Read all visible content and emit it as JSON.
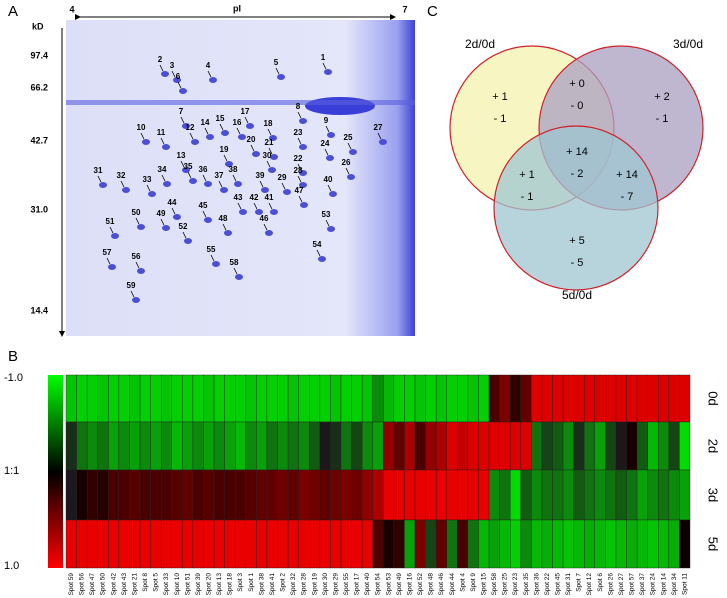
{
  "panel_labels": [
    "A",
    "B",
    "C"
  ],
  "gel": {
    "y_unit": "kD",
    "mw_labels": [
      "97.4",
      "66.2",
      "42.7",
      "31.0",
      "14.4"
    ],
    "x_label": "pI",
    "x_start": "4",
    "x_end": "7",
    "spots": [
      "1",
      "2",
      "3",
      "4",
      "5",
      "6",
      "7",
      "8",
      "9",
      "10",
      "11",
      "12",
      "13",
      "14",
      "15",
      "16",
      "17",
      "18",
      "19",
      "20",
      "21",
      "22",
      "23",
      "24",
      "25",
      "26",
      "27",
      "28",
      "29",
      "30",
      "31",
      "32",
      "33",
      "34",
      "35",
      "36",
      "37",
      "38",
      "39",
      "40",
      "41",
      "42",
      "43",
      "44",
      "45",
      "46",
      "47",
      "48",
      "49",
      "50",
      "51",
      "52",
      "53",
      "54",
      "55",
      "56",
      "57",
      "58",
      "59"
    ]
  },
  "heatmap": {
    "scale_labels": [
      "-1.0",
      "1:1",
      "1.0"
    ],
    "spots": [
      "Spot 59",
      "Spot 56",
      "Spot 47",
      "Spot 50",
      "Spot 42",
      "Spot 43",
      "Spot 21",
      "Spot 8",
      "Spot 5",
      "Spot 33",
      "Spot 10",
      "Spot 51",
      "Spot 39",
      "Spot 20",
      "Spot 13",
      "Spot 18",
      "Spot 3",
      "Spot 1",
      "Spot 38",
      "Spot 41",
      "Spot 2",
      "Spot 32",
      "Spot 28",
      "Spot 19",
      "Spot 30",
      "Spot 29",
      "Spot 55",
      "Spot 17",
      "Spot 40",
      "Spot 54",
      "Spot 53",
      "Spot 49",
      "Spot 16",
      "Spot 52",
      "Spot 48",
      "Spot 46",
      "Spot 44",
      "Spot 4",
      "Spot 9",
      "Spot 15",
      "Spot 58",
      "Spot 25",
      "Spot 23",
      "Spot 35",
      "Spot 36",
      "Spot 22",
      "Spot 45",
      "Spot 31",
      "Spot 7",
      "Spot 12",
      "Spot 6",
      "Spot 26",
      "Spot 27",
      "Spot 57",
      "Spot 37",
      "Spot 24",
      "Spot 14",
      "Spot 34",
      "Spot 11"
    ],
    "rows": [
      {
        "name": "0d",
        "values": [
          -0.85,
          -0.9,
          -0.9,
          -0.85,
          -0.9,
          -0.9,
          -0.85,
          -0.9,
          -0.9,
          -0.85,
          -0.9,
          -0.9,
          -0.9,
          -0.85,
          -0.9,
          -0.9,
          -0.9,
          -0.85,
          -0.9,
          -0.9,
          -0.9,
          -0.85,
          -0.9,
          -0.9,
          -0.9,
          -0.85,
          -0.9,
          -0.9,
          -0.85,
          -0.6,
          -0.8,
          -0.9,
          -0.9,
          -0.85,
          -0.9,
          -0.85,
          -0.9,
          -0.9,
          -0.85,
          -0.9,
          0.3,
          0.5,
          0.2,
          0.4,
          0.9,
          0.9,
          0.9,
          0.9,
          0.9,
          0.9,
          0.9,
          0.9,
          0.9,
          0.9,
          0.9,
          0.9,
          0.9,
          0.9,
          0.9
        ]
      },
      {
        "name": "2d",
        "values": [
          -0.2,
          -0.5,
          -0.6,
          -0.5,
          -0.7,
          -0.6,
          -0.7,
          -0.6,
          -0.7,
          -0.6,
          -0.8,
          -0.7,
          -0.6,
          -0.7,
          -0.6,
          -0.7,
          -0.8,
          -0.6,
          -0.7,
          -0.5,
          -0.6,
          -0.5,
          -0.6,
          -0.4,
          -0.1,
          -0.2,
          -0.5,
          -0.3,
          -0.6,
          -0.7,
          0.6,
          0.4,
          0.7,
          0.3,
          0.6,
          0.7,
          0.9,
          0.8,
          0.9,
          0.9,
          0.9,
          0.9,
          0.9,
          0.9,
          -0.5,
          -0.3,
          -0.4,
          -0.6,
          -0.2,
          -0.5,
          -0.7,
          -0.3,
          -0.1,
          0.1,
          -0.4,
          -0.8,
          -0.6,
          -0.3,
          -0.95
        ]
      },
      {
        "name": "3d",
        "values": [
          -0.1,
          0.1,
          0.2,
          0.15,
          0.3,
          0.3,
          0.35,
          0.3,
          0.3,
          0.3,
          0.35,
          0.4,
          0.3,
          0.35,
          0.3,
          0.3,
          0.3,
          0.35,
          0.4,
          0.4,
          0.45,
          0.4,
          0.5,
          0.45,
          0.4,
          0.45,
          0.5,
          0.45,
          0.6,
          0.7,
          0.95,
          0.95,
          0.95,
          0.95,
          0.95,
          0.95,
          0.95,
          0.95,
          0.95,
          0.95,
          -0.6,
          -0.5,
          -0.95,
          -0.4,
          -0.6,
          -0.5,
          -0.5,
          -0.6,
          -0.4,
          -0.5,
          -0.6,
          -0.5,
          -0.4,
          -0.5,
          -0.7,
          -0.6,
          -0.5,
          -0.6,
          -0.7
        ]
      },
      {
        "name": "5d",
        "values": [
          0.95,
          0.95,
          0.95,
          0.95,
          0.95,
          0.95,
          0.95,
          0.95,
          0.95,
          0.95,
          0.95,
          0.95,
          0.95,
          0.95,
          0.95,
          0.95,
          0.95,
          0.95,
          0.95,
          0.95,
          0.95,
          0.95,
          0.95,
          0.95,
          0.95,
          0.95,
          0.95,
          0.95,
          0.95,
          0.3,
          0.1,
          0.2,
          -0.7,
          0.5,
          -0.3,
          0.4,
          -0.5,
          0.3,
          -0.5,
          -0.8,
          -0.7,
          -0.8,
          -0.9,
          -0.6,
          -0.8,
          -0.75,
          -0.8,
          -0.85,
          -0.8,
          -0.75,
          -0.8,
          -0.85,
          -0.8,
          -0.75,
          -0.8,
          -0.85,
          -0.8,
          -0.75,
          0.05
        ]
      }
    ]
  },
  "venn": {
    "sets": [
      "2d/0d",
      "3d/0d",
      "5d/0d"
    ],
    "regions": [
      {
        "up": "+ 1",
        "down": "- 1"
      },
      {
        "up": "+ 0",
        "down": "- 0"
      },
      {
        "up": "+ 2",
        "down": "- 1"
      },
      {
        "up": "+ 14",
        "down": "- 2"
      },
      {
        "up": "+ 1",
        "down": "- 1"
      },
      {
        "up": "+ 14",
        "down": "- 7"
      },
      {
        "up": "+ 5",
        "down": "- 5"
      }
    ]
  }
}
